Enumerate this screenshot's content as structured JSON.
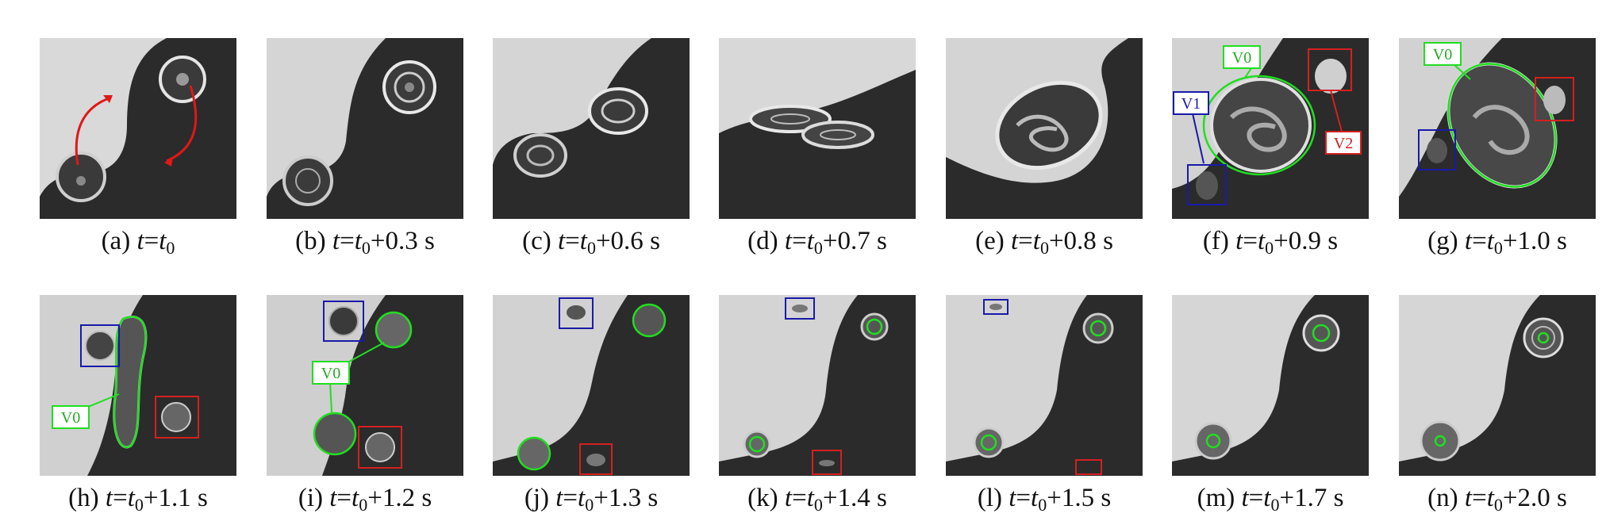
{
  "panels": [
    {
      "id": "a",
      "letter": "(a)",
      "var": "t",
      "eq": "=",
      "base": "t",
      "sub": "0",
      "plus": "",
      "unit": ""
    },
    {
      "id": "b",
      "letter": "(b)",
      "var": "t",
      "eq": "=",
      "base": "t",
      "sub": "0",
      "plus": "+0.3",
      "unit": " s"
    },
    {
      "id": "c",
      "letter": "(c)",
      "var": "t",
      "eq": "=",
      "base": "t",
      "sub": "0",
      "plus": "+0.6",
      "unit": " s"
    },
    {
      "id": "d",
      "letter": "(d)",
      "var": "t",
      "eq": "=",
      "base": "t",
      "sub": "0",
      "plus": "+0.7",
      "unit": " s"
    },
    {
      "id": "e",
      "letter": "(e)",
      "var": "t",
      "eq": "=",
      "base": "t",
      "sub": "0",
      "plus": "+0.8",
      "unit": " s"
    },
    {
      "id": "f",
      "letter": "(f)",
      "var": "t",
      "eq": "=",
      "base": "t",
      "sub": "0",
      "plus": "+0.9",
      "unit": " s"
    },
    {
      "id": "g",
      "letter": "(g)",
      "var": "t",
      "eq": "=",
      "base": "t",
      "sub": "0",
      "plus": "+1.0",
      "unit": " s"
    },
    {
      "id": "h",
      "letter": "(h)",
      "var": "t",
      "eq": "=",
      "base": "t",
      "sub": "0",
      "plus": "+1.1",
      "unit": " s"
    },
    {
      "id": "i",
      "letter": "(i)",
      "var": "t",
      "eq": "=",
      "base": "t",
      "sub": "0",
      "plus": "+1.2",
      "unit": " s"
    },
    {
      "id": "j",
      "letter": "(j)",
      "var": "t",
      "eq": "=",
      "base": "t",
      "sub": "0",
      "plus": "+1.3",
      "unit": " s"
    },
    {
      "id": "k",
      "letter": "(k)",
      "var": "t",
      "eq": "=",
      "base": "t",
      "sub": "0",
      "plus": "+1.4",
      "unit": " s"
    },
    {
      "id": "l",
      "letter": "(l)",
      "var": "t",
      "eq": "=",
      "base": "t",
      "sub": "0",
      "plus": "+1.5",
      "unit": " s"
    },
    {
      "id": "m",
      "letter": "(m)",
      "var": "t",
      "eq": "=",
      "base": "t",
      "sub": "0",
      "plus": "+1.7",
      "unit": " s"
    },
    {
      "id": "n",
      "letter": "(n)",
      "var": "t",
      "eq": "=",
      "base": "t",
      "sub": "0",
      "plus": "+2.0",
      "unit": " s"
    }
  ],
  "annotations": {
    "f_v0": "V0",
    "f_v1": "V1",
    "f_v2": "V2",
    "g_v0": "V0",
    "h_v0": "V0",
    "i_v0": "V0"
  },
  "colors": {
    "green": "#22dd22",
    "blue": "#1a1aa8",
    "red": "#d42020",
    "light": "#d8d8d8",
    "dark": "#2a2a2a"
  }
}
